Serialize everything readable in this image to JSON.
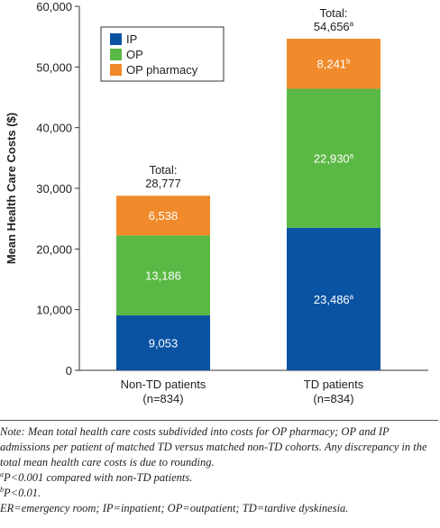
{
  "chart_data": {
    "type": "bar",
    "stacked": true,
    "categories": [
      "Non-TD patients\n(n=834)",
      "TD patients\n(n=834)"
    ],
    "series": [
      {
        "name": "IP",
        "color": "#0a53a3",
        "values": [
          9053,
          23486
        ],
        "labels": [
          "9,053",
          "23,486"
        ],
        "sups": [
          "",
          "a"
        ]
      },
      {
        "name": "OP",
        "color": "#5ab845",
        "values": [
          13186,
          22930
        ],
        "labels": [
          "13,186",
          "22,930"
        ],
        "sups": [
          "",
          "a"
        ]
      },
      {
        "name": "OP pharmacy",
        "color": "#f08a2b",
        "values": [
          6538,
          8241
        ],
        "labels": [
          "6,538",
          "8,241"
        ],
        "sups": [
          "",
          "b"
        ]
      }
    ],
    "totals": [
      {
        "prefix": "Total:",
        "value": "28,777",
        "sup": ""
      },
      {
        "prefix": "Total:",
        "value": "54,656",
        "sup": "a"
      }
    ],
    "ylabel": "Mean Health Care Costs ($)",
    "ylim": [
      0,
      60000
    ],
    "yticks": [
      0,
      10000,
      20000,
      30000,
      40000,
      50000,
      60000
    ],
    "ytick_labels": [
      "0",
      "10,000",
      "20,000",
      "30,000",
      "40,000",
      "50,000",
      "60,000"
    ],
    "legend_position": "top-left",
    "grid": false
  },
  "notes": {
    "line1": "Note: Mean total health care costs subdivided into costs for OP pharmacy; OP and IP admissions per patient of matched TD versus matched non-TD cohorts. Any discrepancy in the total mean health care costs is due to rounding.",
    "line2_sup": "a",
    "line2": "P<0.001 compared with non-TD patients.",
    "line3_sup": "b",
    "line3": "P<0.01.",
    "line4": "ER=emergency room; IP=inpatient; OP=outpatient; TD=tardive dyskinesia."
  }
}
